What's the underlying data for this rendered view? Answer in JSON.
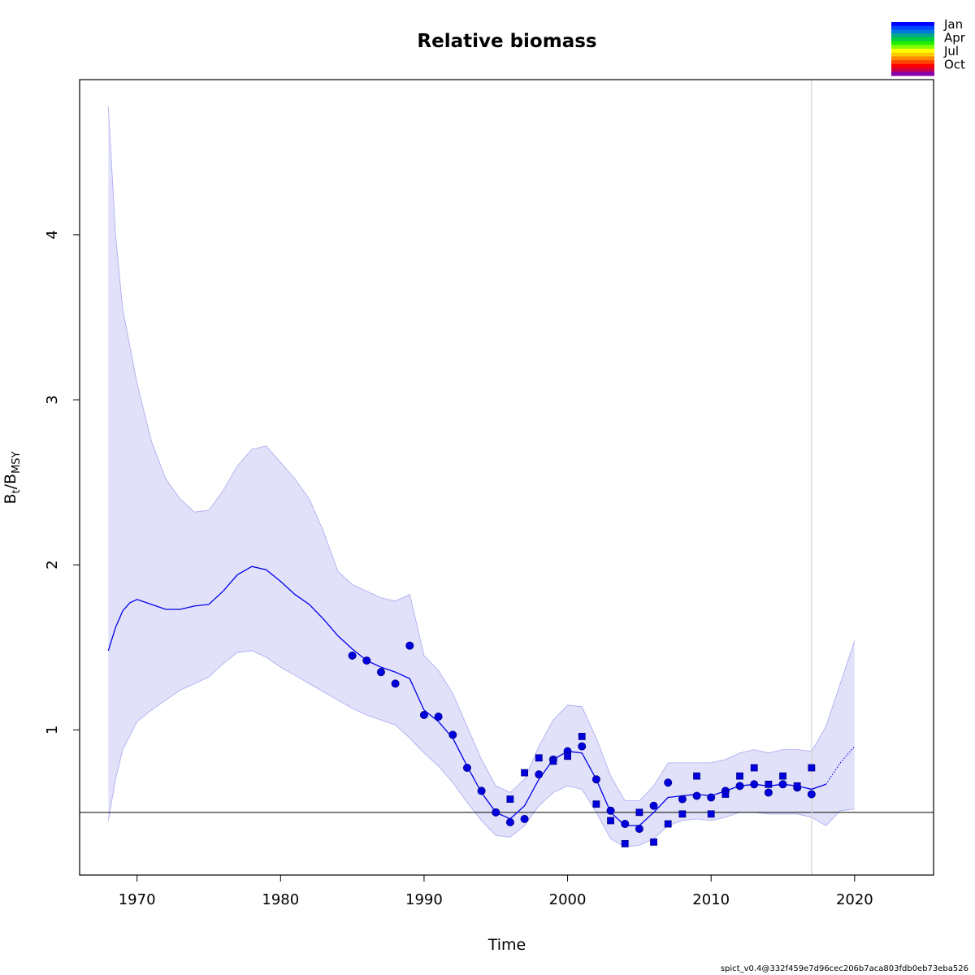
{
  "chart_data": {
    "type": "line",
    "title": "Relative biomass",
    "xlabel": "Time",
    "ylabel": "Bt/BMSY",
    "ylabel_base": "B",
    "ylabel_sub1": "t",
    "ylabel_sep": "/B",
    "ylabel_sub2": "MSY",
    "xlim": [
      1966,
      2025.5
    ],
    "ylim": [
      0.12,
      4.94
    ],
    "x_ticks": [
      1970,
      1980,
      1990,
      2000,
      2010,
      2020
    ],
    "y_ticks": [
      1,
      2,
      3,
      4
    ],
    "grid": false,
    "reference_line_y": 0.5,
    "vertical_line_x": 2017,
    "colors": {
      "estimate": "#0000ee",
      "band_fill": "#e1e1fa",
      "band_edge": "#a8a8f0",
      "points": "#0000dd",
      "vline": "#d3d3d3"
    },
    "series": [
      {
        "kind": "estimate",
        "x": [
          1968,
          1968.5,
          1969,
          1969.5,
          1970,
          1971,
          1972,
          1973,
          1974,
          1975,
          1976,
          1977,
          1978,
          1979,
          1980,
          1981,
          1982,
          1983,
          1984,
          1985,
          1986,
          1987,
          1988,
          1989,
          1990,
          1991,
          1992,
          1993,
          1994,
          1995,
          1996,
          1997,
          1998,
          1999,
          2000,
          2001,
          2002,
          2003,
          2004,
          2005,
          2006,
          2007,
          2008,
          2009,
          2010,
          2011,
          2012,
          2013,
          2014,
          2015,
          2016,
          2017,
          2018
        ],
        "y": [
          1.48,
          1.62,
          1.72,
          1.77,
          1.79,
          1.76,
          1.73,
          1.73,
          1.75,
          1.76,
          1.84,
          1.94,
          1.99,
          1.97,
          1.9,
          1.82,
          1.76,
          1.67,
          1.57,
          1.49,
          1.42,
          1.38,
          1.35,
          1.31,
          1.12,
          1.05,
          0.95,
          0.78,
          0.62,
          0.5,
          0.46,
          0.54,
          0.7,
          0.82,
          0.87,
          0.86,
          0.7,
          0.5,
          0.42,
          0.42,
          0.5,
          0.59,
          0.6,
          0.61,
          0.6,
          0.63,
          0.66,
          0.67,
          0.66,
          0.67,
          0.66,
          0.64,
          0.67
        ]
      },
      {
        "kind": "estimate-forecast",
        "x": [
          2018,
          2019,
          2020
        ],
        "y": [
          0.67,
          0.8,
          0.9
        ]
      },
      {
        "kind": "upper-ci",
        "x": [
          1968,
          1968.5,
          1969,
          1970,
          1971,
          1972,
          1973,
          1974,
          1975,
          1976,
          1977,
          1978,
          1979,
          1980,
          1981,
          1982,
          1983,
          1984,
          1985,
          1986,
          1987,
          1988,
          1989,
          1990,
          1991,
          1992,
          1993,
          1994,
          1995,
          1996,
          1997,
          1998,
          1999,
          2000,
          2001,
          2002,
          2003,
          2004,
          2005,
          2006,
          2007,
          2008,
          2009,
          2010,
          2011,
          2012,
          2013,
          2014,
          2015,
          2016,
          2017,
          2018,
          2019,
          2020
        ],
        "y": [
          4.78,
          4.0,
          3.55,
          3.1,
          2.75,
          2.52,
          2.4,
          2.32,
          2.33,
          2.45,
          2.6,
          2.7,
          2.72,
          2.62,
          2.52,
          2.4,
          2.2,
          1.96,
          1.88,
          1.84,
          1.8,
          1.78,
          1.82,
          1.45,
          1.36,
          1.22,
          1.02,
          0.82,
          0.66,
          0.62,
          0.7,
          0.9,
          1.06,
          1.15,
          1.14,
          0.95,
          0.72,
          0.57,
          0.57,
          0.66,
          0.8,
          0.8,
          0.8,
          0.8,
          0.82,
          0.86,
          0.88,
          0.86,
          0.88,
          0.88,
          0.87,
          1.02,
          1.28,
          1.54
        ]
      },
      {
        "kind": "lower-ci",
        "x": [
          1968,
          1968.5,
          1969,
          1970,
          1971,
          1972,
          1973,
          1974,
          1975,
          1976,
          1977,
          1978,
          1979,
          1980,
          1981,
          1982,
          1983,
          1984,
          1985,
          1986,
          1987,
          1988,
          1989,
          1990,
          1991,
          1992,
          1993,
          1994,
          1995,
          1996,
          1997,
          1998,
          1999,
          2000,
          2001,
          2002,
          2003,
          2004,
          2005,
          2006,
          2007,
          2008,
          2009,
          2010,
          2011,
          2012,
          2013,
          2014,
          2015,
          2016,
          2017,
          2018,
          2019,
          2020
        ],
        "y": [
          0.45,
          0.7,
          0.88,
          1.05,
          1.12,
          1.18,
          1.24,
          1.28,
          1.32,
          1.4,
          1.47,
          1.48,
          1.44,
          1.38,
          1.33,
          1.28,
          1.23,
          1.18,
          1.13,
          1.09,
          1.06,
          1.03,
          0.95,
          0.86,
          0.78,
          0.68,
          0.56,
          0.45,
          0.36,
          0.35,
          0.42,
          0.54,
          0.62,
          0.66,
          0.64,
          0.5,
          0.34,
          0.29,
          0.3,
          0.34,
          0.42,
          0.45,
          0.46,
          0.45,
          0.47,
          0.5,
          0.5,
          0.49,
          0.49,
          0.49,
          0.47,
          0.42,
          0.51,
          0.52
        ]
      },
      {
        "kind": "observations-index1",
        "marker": "circle",
        "x": [
          1985,
          1986,
          1987,
          1988,
          1989,
          1990,
          1991,
          1992,
          1993,
          1994,
          1995,
          1996,
          1997,
          1998,
          1999,
          2000,
          2001,
          2002,
          2003,
          2004,
          2005,
          2006,
          2007,
          2008,
          2009,
          2010,
          2011,
          2012,
          2013,
          2014,
          2015,
          2016,
          2017
        ],
        "y": [
          1.45,
          1.42,
          1.35,
          1.28,
          1.51,
          1.09,
          1.08,
          0.97,
          0.77,
          0.63,
          0.5,
          0.44,
          0.46,
          0.73,
          0.82,
          0.87,
          0.9,
          0.7,
          0.51,
          0.43,
          0.4,
          0.54,
          0.68,
          0.58,
          0.6,
          0.59,
          0.63,
          0.66,
          0.67,
          0.62,
          0.67,
          0.65,
          0.61
        ]
      },
      {
        "kind": "observations-index2",
        "marker": "square",
        "x": [
          1996,
          1997,
          1998,
          1999,
          2000,
          2001,
          2002,
          2003,
          2004,
          2005,
          2006,
          2007,
          2008,
          2009,
          2010,
          2011,
          2012,
          2013,
          2014,
          2015,
          2016,
          2017
        ],
        "y": [
          0.58,
          0.74,
          0.83,
          0.81,
          0.84,
          0.96,
          0.55,
          0.45,
          0.31,
          0.5,
          0.32,
          0.43,
          0.49,
          0.72,
          0.49,
          0.61,
          0.72,
          0.77,
          0.67,
          0.72,
          0.66,
          0.77
        ]
      }
    ],
    "legend": {
      "position": "top-right",
      "labels": [
        "Jan",
        "Apr",
        "Jul",
        "Oct"
      ],
      "stops": [
        "#0000ff",
        "#0044ff",
        "#0077dd",
        "#00aa88",
        "#00cc44",
        "#22ee00",
        "#88ff00",
        "#ffff00",
        "#ffcc00",
        "#ff8800",
        "#ff4400",
        "#ff0000",
        "#cc0044",
        "#8800aa"
      ]
    }
  },
  "footer": "spict_v0.4@332f459e7d96cec206b7aca803fdb0eb73eba526"
}
